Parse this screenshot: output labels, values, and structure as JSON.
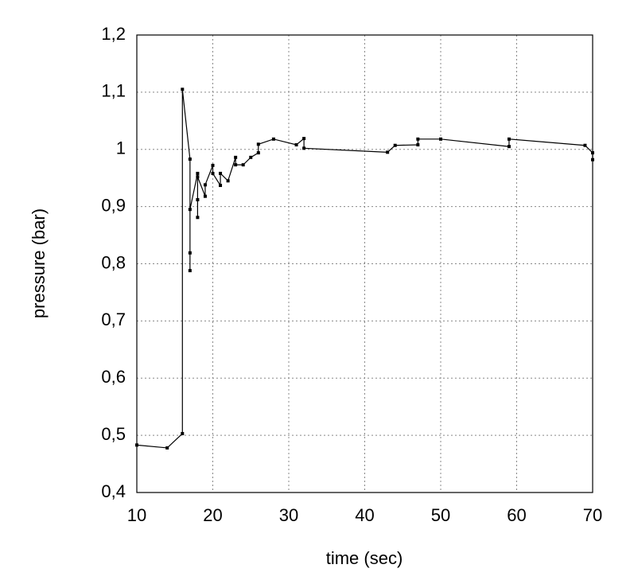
{
  "chart_data": {
    "type": "line",
    "xlabel": "time (sec)",
    "ylabel": "pressure (bar)",
    "xlim": [
      10,
      70
    ],
    "xticks": [
      10,
      20,
      30,
      40,
      50,
      60,
      70
    ],
    "ylim": [
      0.4,
      1.2
    ],
    "yticks": [
      {
        "value": 0.4,
        "label": "0,4"
      },
      {
        "value": 0.5,
        "label": "0,5"
      },
      {
        "value": 0.6,
        "label": "0,6"
      },
      {
        "value": 0.7,
        "label": "0,7"
      },
      {
        "value": 0.8,
        "label": "0,8"
      },
      {
        "value": 0.9,
        "label": "0,9"
      },
      1,
      {
        "value": 1.1,
        "label": "1,1"
      },
      {
        "value": 1.2,
        "label": "1,2"
      }
    ],
    "grid": true,
    "series": [
      {
        "color": "#000000",
        "x": [
          10,
          14,
          16,
          16,
          17,
          17,
          17,
          17,
          18,
          18,
          18,
          18,
          19,
          19,
          20,
          20,
          21,
          21,
          22,
          23,
          23,
          24,
          25,
          26,
          26,
          28,
          31,
          32,
          32,
          43,
          44,
          47,
          47,
          50,
          59,
          59,
          69,
          70,
          70
        ],
        "values": [
          0.483,
          0.478,
          0.503,
          1.105,
          0.983,
          0.788,
          0.819,
          0.895,
          0.958,
          0.881,
          0.912,
          0.952,
          0.918,
          0.938,
          0.972,
          0.958,
          0.937,
          0.958,
          0.945,
          0.986,
          0.973,
          0.973,
          0.986,
          0.994,
          1.009,
          1.018,
          1.008,
          1.019,
          1.002,
          0.995,
          1.007,
          1.008,
          1.018,
          1.018,
          1.005,
          1.018,
          1.007,
          0.994,
          0.982
        ]
      }
    ]
  }
}
